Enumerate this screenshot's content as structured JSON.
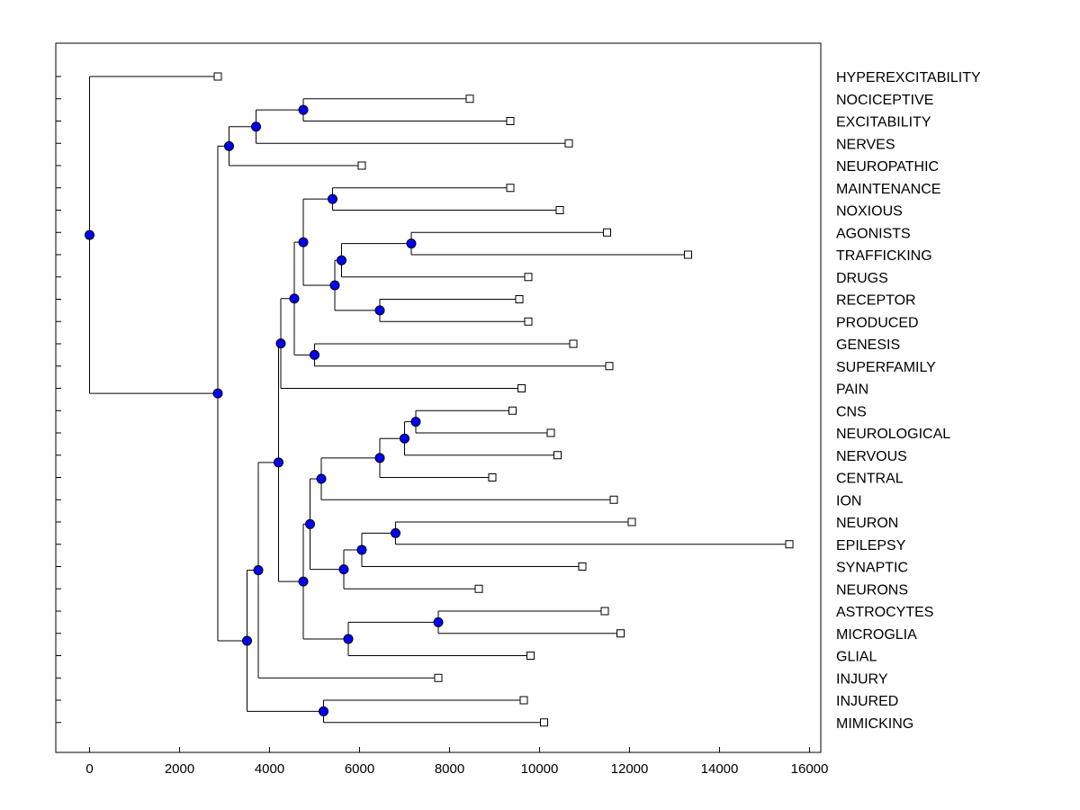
{
  "chart_data": {
    "type": "dendrogram",
    "title": "",
    "xlabel": "",
    "ylabel": "",
    "xlim": [
      -750,
      16250
    ],
    "xticks": [
      0,
      2000,
      4000,
      6000,
      8000,
      10000,
      12000,
      14000,
      16000
    ],
    "xtick_labels": [
      "0",
      "2000",
      "4000",
      "6000",
      "8000",
      "10000",
      "12000",
      "14000",
      "16000"
    ],
    "colors": {
      "node": "#0000ff",
      "line": "#000000",
      "leaf": "#ffffff"
    },
    "leaves": [
      {
        "label": "HYPEREXCITABILITY",
        "x": 2850
      },
      {
        "label": "NOCICEPTIVE",
        "x": 8450
      },
      {
        "label": "EXCITABILITY",
        "x": 9350
      },
      {
        "label": "NERVES",
        "x": 10650
      },
      {
        "label": "NEUROPATHIC",
        "x": 6050
      },
      {
        "label": "MAINTENANCE",
        "x": 9350
      },
      {
        "label": "NOXIOUS",
        "x": 10450
      },
      {
        "label": "AGONISTS",
        "x": 11500
      },
      {
        "label": "TRAFFICKING",
        "x": 13300
      },
      {
        "label": "DRUGS",
        "x": 9750
      },
      {
        "label": "RECEPTOR",
        "x": 9550
      },
      {
        "label": "PRODUCED",
        "x": 9750
      },
      {
        "label": "GENESIS",
        "x": 10750
      },
      {
        "label": "SUPERFAMILY",
        "x": 11550
      },
      {
        "label": "PAIN",
        "x": 9600
      },
      {
        "label": "CNS",
        "x": 9400
      },
      {
        "label": "NEUROLOGICAL",
        "x": 10250
      },
      {
        "label": "NERVOUS",
        "x": 10400
      },
      {
        "label": "CENTRAL",
        "x": 8950
      },
      {
        "label": "ION",
        "x": 11650
      },
      {
        "label": "NEURON",
        "x": 12050
      },
      {
        "label": "EPILEPSY",
        "x": 15550
      },
      {
        "label": "SYNAPTIC",
        "x": 10950
      },
      {
        "label": "NEURONS",
        "x": 8650
      },
      {
        "label": "ASTROCYTES",
        "x": 11450
      },
      {
        "label": "MICROGLIA",
        "x": 11800
      },
      {
        "label": "GLIAL",
        "x": 9800
      },
      {
        "label": "INJURY",
        "x": 7750
      },
      {
        "label": "INJURED",
        "x": 9650
      },
      {
        "label": "MIMICKING",
        "x": 10100
      }
    ],
    "merges": [
      {
        "id": "n1",
        "x": 4750,
        "children": [
          "NOCICEPTIVE",
          "EXCITABILITY"
        ]
      },
      {
        "id": "n2",
        "x": 3700,
        "children": [
          "n1",
          "NERVES"
        ]
      },
      {
        "id": "n3",
        "x": 3100,
        "children": [
          "n2",
          "NEUROPATHIC"
        ]
      },
      {
        "id": "n4",
        "x": 5400,
        "children": [
          "MAINTENANCE",
          "NOXIOUS"
        ]
      },
      {
        "id": "n5",
        "x": 7150,
        "children": [
          "AGONISTS",
          "TRAFFICKING"
        ]
      },
      {
        "id": "n6",
        "x": 5600,
        "children": [
          "n5",
          "DRUGS"
        ]
      },
      {
        "id": "n7",
        "x": 6450,
        "children": [
          "RECEPTOR",
          "PRODUCED"
        ]
      },
      {
        "id": "n8",
        "x": 5450,
        "children": [
          "n6",
          "n7"
        ]
      },
      {
        "id": "n9",
        "x": 4750,
        "children": [
          "n4",
          "n8"
        ]
      },
      {
        "id": "n10",
        "x": 5000,
        "children": [
          "GENESIS",
          "SUPERFAMILY"
        ]
      },
      {
        "id": "n11",
        "x": 4550,
        "children": [
          "n9",
          "n10"
        ]
      },
      {
        "id": "n12",
        "x": 4250,
        "children": [
          "n11",
          "PAIN"
        ]
      },
      {
        "id": "n13",
        "x": 7250,
        "children": [
          "CNS",
          "NEUROLOGICAL"
        ]
      },
      {
        "id": "n14",
        "x": 7000,
        "children": [
          "n13",
          "NERVOUS"
        ]
      },
      {
        "id": "n15",
        "x": 6450,
        "children": [
          "n14",
          "CENTRAL"
        ]
      },
      {
        "id": "n16",
        "x": 5150,
        "children": [
          "n15",
          "ION"
        ]
      },
      {
        "id": "n17",
        "x": 6800,
        "children": [
          "NEURON",
          "EPILEPSY"
        ]
      },
      {
        "id": "n18",
        "x": 6050,
        "children": [
          "n17",
          "SYNAPTIC"
        ]
      },
      {
        "id": "n19",
        "x": 5650,
        "children": [
          "n18",
          "NEURONS"
        ]
      },
      {
        "id": "n20",
        "x": 4900,
        "children": [
          "n16",
          "n19"
        ]
      },
      {
        "id": "n21",
        "x": 7750,
        "children": [
          "ASTROCYTES",
          "MICROGLIA"
        ]
      },
      {
        "id": "n22",
        "x": 5750,
        "children": [
          "n21",
          "GLIAL"
        ]
      },
      {
        "id": "n23",
        "x": 4750,
        "children": [
          "n20",
          "n22"
        ]
      },
      {
        "id": "n24",
        "x": 4200,
        "children": [
          "n12",
          "n23"
        ]
      },
      {
        "id": "n25",
        "x": 3750,
        "children": [
          "n24",
          "INJURY"
        ]
      },
      {
        "id": "n26",
        "x": 5200,
        "children": [
          "INJURED",
          "MIMICKING"
        ]
      },
      {
        "id": "n27",
        "x": 3500,
        "children": [
          "n25",
          "n26"
        ]
      },
      {
        "id": "n28",
        "x": 2850,
        "children": [
          "n3",
          "n27"
        ]
      },
      {
        "id": "root",
        "x": 0,
        "children": [
          "HYPEREXCITABILITY",
          "n28"
        ]
      }
    ]
  }
}
